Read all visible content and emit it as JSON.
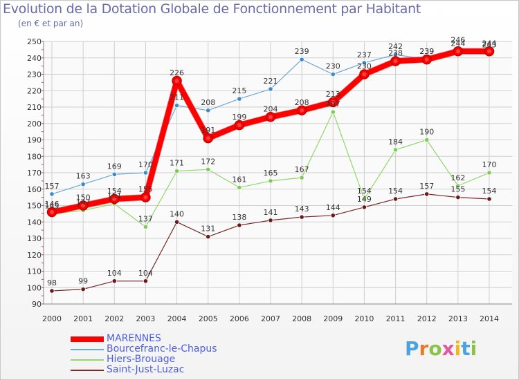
{
  "header": {
    "title": "Evolution de la Dotation Globale de Fonctionnement par Habitant",
    "subtitle": "(en € et par an)"
  },
  "logo": {
    "text": "Proxiti",
    "letters": [
      {
        "ch": "P",
        "color": "#4aa3e0"
      },
      {
        "ch": "r",
        "color": "#e87a2a"
      },
      {
        "ch": "o",
        "color": "#8bc34a"
      },
      {
        "ch": "x",
        "color": "#e05aa0"
      },
      {
        "ch": "i",
        "color": "#f2b51c"
      },
      {
        "ch": "t",
        "color": "#4aa3e0"
      },
      {
        "ch": "i",
        "color": "#8bc34a"
      }
    ]
  },
  "chart_data": {
    "type": "line",
    "x": [
      "2000",
      "2001",
      "2002",
      "2003",
      "2004",
      "2005",
      "2006",
      "2007",
      "2008",
      "2009",
      "2010",
      "2011",
      "2012",
      "2013",
      "2014"
    ],
    "ylim": [
      90,
      250
    ],
    "yticks": [
      90,
      100,
      110,
      120,
      130,
      140,
      150,
      160,
      170,
      180,
      190,
      200,
      210,
      220,
      230,
      240,
      250
    ],
    "grid": true,
    "legend_position": "bottom-left",
    "series": [
      {
        "name": "Saint-Just-Luzac",
        "color": "#7a2a2a",
        "marker": "#6a1a1a",
        "stroke": 1.2,
        "dot": 3.2,
        "values": [
          98,
          99,
          104,
          104,
          140,
          131,
          138,
          141,
          143,
          144,
          149,
          154,
          157,
          155,
          154
        ]
      },
      {
        "name": "Hiers-Brouage",
        "color": "#8fd86a",
        "marker": "#7ccc55",
        "stroke": 1.2,
        "dot": 3.2,
        "values": [
          145,
          147,
          151,
          137,
          171,
          172,
          161,
          165,
          167,
          207,
          154,
          184,
          190,
          162,
          170
        ]
      },
      {
        "name": "Bourcefranc-le-Chapus",
        "color": "#6aa8d8",
        "marker": "#3a8ad0",
        "stroke": 1.2,
        "dot": 3.2,
        "values": [
          157,
          163,
          169,
          170,
          211,
          208,
          215,
          221,
          239,
          230,
          237,
          242,
          239,
          246,
          243
        ]
      },
      {
        "name": "MARENNES",
        "color": "#ff0000",
        "marker": "#ff0000",
        "stroke": 8,
        "dot": 6.5,
        "values": [
          146,
          150,
          154,
          155,
          226,
          191,
          199,
          204,
          208,
          213,
          230,
          238,
          239,
          244,
          244
        ]
      }
    ],
    "legend_order": [
      "MARENNES",
      "Bourcefranc-le-Chapus",
      "Hiers-Brouage",
      "Saint-Just-Luzac"
    ]
  }
}
